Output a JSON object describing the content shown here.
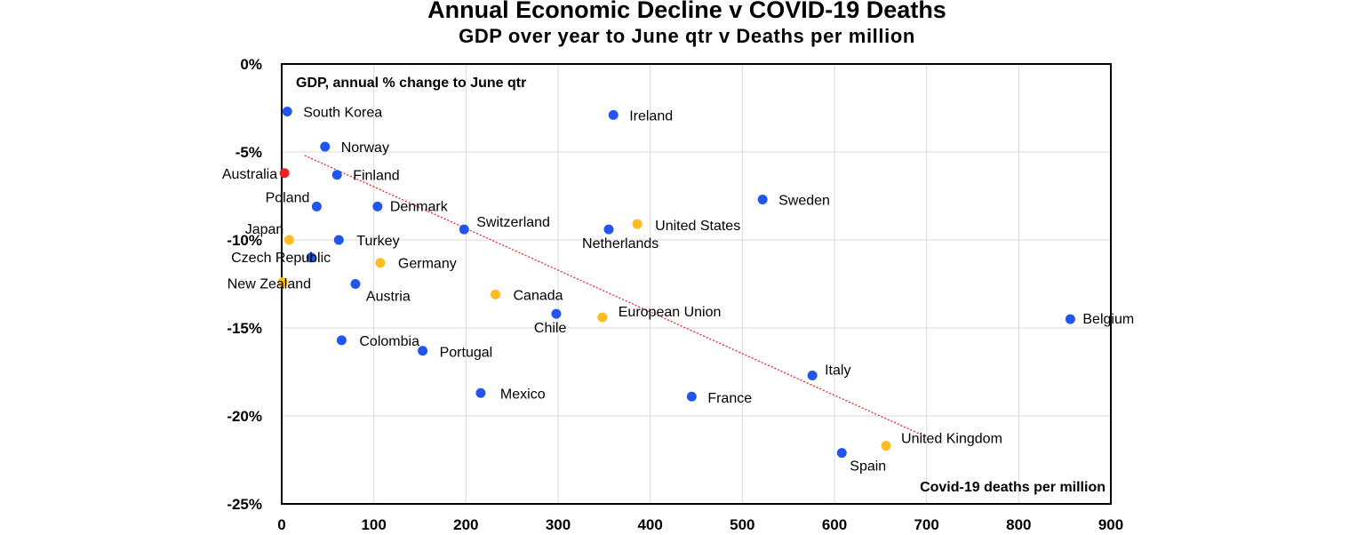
{
  "chart_data": {
    "type": "scatter",
    "title": "Annual Economic Decline v COVID-19 Deaths",
    "subtitle": "GDP over year to June qtr v Deaths per million",
    "ylabel": "GDP, annual % change to June qtr",
    "xlabel": "Covid-19 deaths per million",
    "xlim": [
      0,
      900
    ],
    "ylim": [
      -25,
      0
    ],
    "x_ticks": [
      0,
      100,
      200,
      300,
      400,
      500,
      600,
      700,
      800,
      900
    ],
    "y_ticks": [
      0,
      -5,
      -10,
      -15,
      -20,
      -25
    ],
    "x_tick_labels": [
      "0",
      "100",
      "200",
      "300",
      "400",
      "500",
      "600",
      "700",
      "800",
      "900"
    ],
    "y_tick_labels": [
      "0%",
      "-5%",
      "-10%",
      "-15%",
      "-20%",
      "-25%"
    ],
    "grid": true,
    "colors": {
      "default": "#2255ee",
      "highlight": "#ffbb22",
      "australia": "#ee2222",
      "trend": "#ee2222"
    },
    "points": [
      {
        "name": "South Korea",
        "x": 6,
        "y": -2.7,
        "group": "default"
      },
      {
        "name": "Ireland",
        "x": 360,
        "y": -2.9,
        "group": "default"
      },
      {
        "name": "Norway",
        "x": 47,
        "y": -4.7,
        "group": "default"
      },
      {
        "name": "Australia",
        "x": 3,
        "y": -6.2,
        "group": "australia"
      },
      {
        "name": "Finland",
        "x": 60,
        "y": -6.3,
        "group": "default"
      },
      {
        "name": "Sweden",
        "x": 522,
        "y": -7.7,
        "group": "default"
      },
      {
        "name": "Poland",
        "x": 38,
        "y": -8.1,
        "group": "default"
      },
      {
        "name": "Denmark",
        "x": 104,
        "y": -8.1,
        "group": "default"
      },
      {
        "name": "Switzerland",
        "x": 198,
        "y": -9.4,
        "group": "default"
      },
      {
        "name": "United States",
        "x": 386,
        "y": -9.1,
        "group": "highlight"
      },
      {
        "name": "Netherlands",
        "x": 355,
        "y": -9.4,
        "group": "default"
      },
      {
        "name": "Japan",
        "x": 8,
        "y": -10.0,
        "group": "highlight"
      },
      {
        "name": "Turkey",
        "x": 62,
        "y": -10.0,
        "group": "default"
      },
      {
        "name": "Czech Republic",
        "x": 32,
        "y": -11.0,
        "group": "default"
      },
      {
        "name": "Germany",
        "x": 107,
        "y": -11.3,
        "group": "highlight"
      },
      {
        "name": "New Zealand",
        "x": 1,
        "y": -12.4,
        "group": "highlight"
      },
      {
        "name": "Austria",
        "x": 80,
        "y": -12.5,
        "group": "default"
      },
      {
        "name": "Canada",
        "x": 232,
        "y": -13.1,
        "group": "highlight"
      },
      {
        "name": "Chile",
        "x": 298,
        "y": -14.2,
        "group": "default"
      },
      {
        "name": "European Union",
        "x": 348,
        "y": -14.4,
        "group": "highlight"
      },
      {
        "name": "Belgium",
        "x": 856,
        "y": -14.5,
        "group": "default"
      },
      {
        "name": "Colombia",
        "x": 65,
        "y": -15.7,
        "group": "default"
      },
      {
        "name": "Portugal",
        "x": 153,
        "y": -16.3,
        "group": "default"
      },
      {
        "name": "Italy",
        "x": 576,
        "y": -17.7,
        "group": "default"
      },
      {
        "name": "Mexico",
        "x": 216,
        "y": -18.7,
        "group": "default"
      },
      {
        "name": "France",
        "x": 445,
        "y": -18.9,
        "group": "default"
      },
      {
        "name": "United Kingdom",
        "x": 656,
        "y": -21.7,
        "group": "highlight"
      },
      {
        "name": "Spain",
        "x": 608,
        "y": -22.1,
        "group": "default"
      }
    ],
    "trendline": {
      "x": [
        25,
        700
      ],
      "y": [
        -5.2,
        -21.2
      ]
    }
  }
}
